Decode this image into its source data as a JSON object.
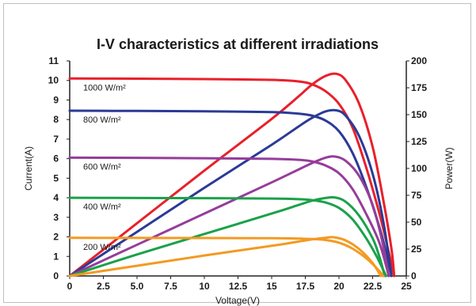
{
  "chart_data": {
    "type": "line",
    "title": "I-V characteristics at different irradiations",
    "xlabel": "Voltage(V)",
    "ylabel_left": "Current(A)",
    "ylabel_right": "Power(W)",
    "xlim": [
      0,
      25
    ],
    "ylim_left": [
      0,
      11
    ],
    "ylim_right": [
      0,
      200
    ],
    "x_ticks": [
      0,
      2.5,
      5,
      7.5,
      10,
      12.5,
      15,
      17.5,
      20,
      22.5,
      25
    ],
    "x_tick_labels": [
      "0",
      "2.5",
      "5.0",
      "7.5",
      "10",
      "12.5",
      "15",
      "17.5",
      "20",
      "22.5",
      "25"
    ],
    "y_left_ticks": [
      0,
      1,
      2,
      3,
      4,
      5,
      6,
      7,
      8,
      9,
      10,
      11
    ],
    "y_left_tick_labels": [
      "0",
      "1",
      "2",
      "3",
      "4",
      "5",
      "6",
      "7",
      "8",
      "9",
      "10",
      "11"
    ],
    "y_right_ticks": [
      0,
      25,
      50,
      75,
      100,
      125,
      150,
      175,
      200
    ],
    "y_right_tick_labels": [
      "0",
      "25",
      "50",
      "75",
      "100",
      "125",
      "150",
      "175",
      "200"
    ],
    "grid": false,
    "series": [
      {
        "name": "1000 W/m²",
        "color": "#e8202a",
        "iv": [
          [
            0,
            10.1
          ],
          [
            5,
            10.09
          ],
          [
            10,
            10.07
          ],
          [
            15,
            10.03
          ],
          [
            17,
            9.95
          ],
          [
            18,
            9.8
          ],
          [
            19,
            9.45
          ],
          [
            20,
            8.8
          ],
          [
            21,
            7.6
          ],
          [
            22,
            5.6
          ],
          [
            23,
            3.2
          ],
          [
            23.6,
            1.5
          ],
          [
            24.1,
            0
          ]
        ],
        "pv": [
          [
            0,
            0
          ],
          [
            5,
            49
          ],
          [
            10,
            98
          ],
          [
            15,
            146
          ],
          [
            17,
            167
          ],
          [
            18,
            178
          ],
          [
            19,
            186
          ],
          [
            19.8,
            188
          ],
          [
            20.5,
            182
          ],
          [
            21.5,
            160
          ],
          [
            22.5,
            120
          ],
          [
            23.3,
            70
          ],
          [
            23.9,
            25
          ],
          [
            24.1,
            0
          ]
        ]
      },
      {
        "name": "800 W/m²",
        "color": "#2b3a97",
        "iv": [
          [
            0,
            8.45
          ],
          [
            5,
            8.44
          ],
          [
            10,
            8.42
          ],
          [
            15,
            8.38
          ],
          [
            17,
            8.3
          ],
          [
            18,
            8.2
          ],
          [
            19,
            7.95
          ],
          [
            20,
            7.4
          ],
          [
            21,
            6.3
          ],
          [
            22,
            4.6
          ],
          [
            23,
            2.5
          ],
          [
            23.5,
            1.2
          ],
          [
            23.9,
            0
          ]
        ],
        "pv": [
          [
            0,
            0
          ],
          [
            5,
            41
          ],
          [
            10,
            82
          ],
          [
            15,
            122
          ],
          [
            17,
            139
          ],
          [
            18,
            147
          ],
          [
            19,
            153
          ],
          [
            19.8,
            154
          ],
          [
            20.5,
            149
          ],
          [
            21.5,
            130
          ],
          [
            22.5,
            95
          ],
          [
            23.3,
            50
          ],
          [
            23.9,
            0
          ]
        ]
      },
      {
        "name": "600 W/m²",
        "color": "#953d9a",
        "iv": [
          [
            0,
            6.05
          ],
          [
            5,
            6.04
          ],
          [
            10,
            6.02
          ],
          [
            15,
            5.99
          ],
          [
            17,
            5.94
          ],
          [
            18,
            5.86
          ],
          [
            19,
            5.65
          ],
          [
            20,
            5.25
          ],
          [
            21,
            4.45
          ],
          [
            22,
            3.2
          ],
          [
            23,
            1.7
          ],
          [
            23.7,
            0
          ]
        ],
        "pv": [
          [
            0,
            0
          ],
          [
            5,
            29
          ],
          [
            10,
            58
          ],
          [
            15,
            87
          ],
          [
            17,
            99
          ],
          [
            18,
            105
          ],
          [
            19,
            110
          ],
          [
            19.7,
            111
          ],
          [
            20.5,
            107
          ],
          [
            21.5,
            93
          ],
          [
            22.5,
            66
          ],
          [
            23.2,
            33
          ],
          [
            23.7,
            0
          ]
        ]
      },
      {
        "name": "400 W/m²",
        "color": "#1aa14a",
        "iv": [
          [
            0,
            4.0
          ],
          [
            5,
            3.99
          ],
          [
            10,
            3.98
          ],
          [
            15,
            3.96
          ],
          [
            17,
            3.93
          ],
          [
            18,
            3.88
          ],
          [
            19,
            3.76
          ],
          [
            20,
            3.48
          ],
          [
            21,
            2.9
          ],
          [
            22,
            1.95
          ],
          [
            22.8,
            1.0
          ],
          [
            23.5,
            0
          ]
        ],
        "pv": [
          [
            0,
            0
          ],
          [
            5,
            20
          ],
          [
            10,
            39
          ],
          [
            15,
            58
          ],
          [
            17,
            66
          ],
          [
            18,
            70
          ],
          [
            19,
            72.5
          ],
          [
            19.7,
            73
          ],
          [
            20.5,
            69
          ],
          [
            21.5,
            56
          ],
          [
            22.5,
            35
          ],
          [
            23,
            18
          ],
          [
            23.4,
            0
          ]
        ]
      },
      {
        "name": "200 W/m²",
        "color": "#f39a22",
        "iv": [
          [
            0,
            1.95
          ],
          [
            5,
            1.945
          ],
          [
            10,
            1.94
          ],
          [
            15,
            1.93
          ],
          [
            17,
            1.91
          ],
          [
            18,
            1.89
          ],
          [
            19,
            1.84
          ],
          [
            20,
            1.7
          ],
          [
            21,
            1.4
          ],
          [
            22,
            0.92
          ],
          [
            22.8,
            0.4
          ],
          [
            23.3,
            0
          ]
        ],
        "pv": [
          [
            0,
            0
          ],
          [
            5,
            9.5
          ],
          [
            10,
            19
          ],
          [
            15,
            28
          ],
          [
            17,
            32
          ],
          [
            18,
            34
          ],
          [
            19,
            35.5
          ],
          [
            19.6,
            36
          ],
          [
            20.5,
            33
          ],
          [
            21.5,
            25
          ],
          [
            22.5,
            12
          ],
          [
            23.1,
            0
          ]
        ]
      }
    ]
  }
}
